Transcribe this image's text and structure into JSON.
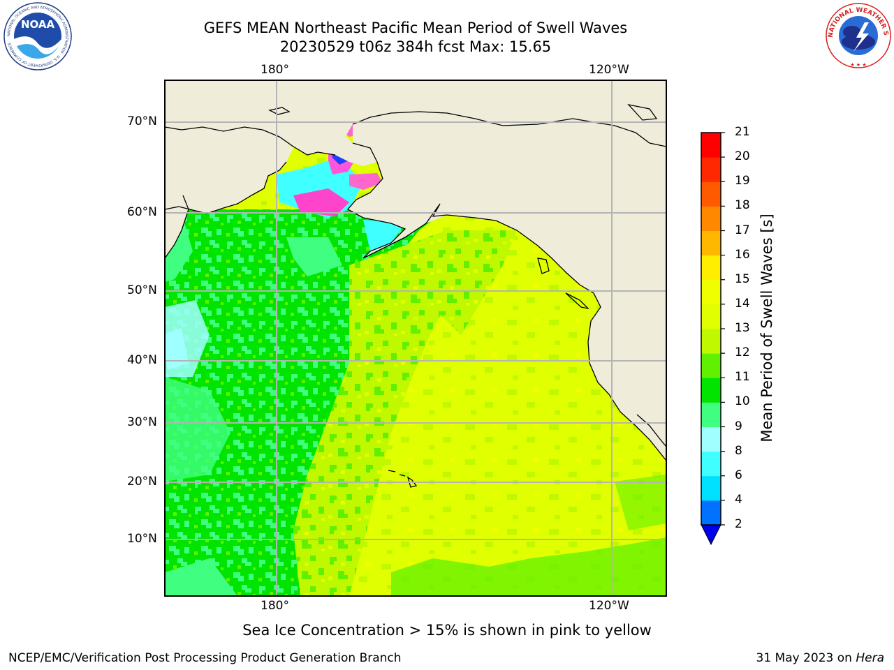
{
  "header": {
    "title_line1": "GEFS MEAN Northeast Pacific Mean Period of Swell Waves",
    "title_line2": "20230529 t06z 384h fcst   Max: 15.65"
  },
  "logos": {
    "noaa_text": "NOAA",
    "noaa_ring_text": "NATIONAL OCEANIC AND ATMOSPHERIC ADMINISTRATION · U.S. DEPARTMENT OF COMMERCE",
    "nws_ring_text": "NATIONAL WEATHER SERVICE"
  },
  "map": {
    "lon_labels": [
      "180°",
      "120°W"
    ],
    "lat_labels": [
      "70°N",
      "60°N",
      "50°N",
      "40°N",
      "30°N",
      "20°N",
      "10°N"
    ],
    "colors": {
      "land": "#efecda",
      "gridline": "#b4b4b4",
      "coastline": "#000000"
    }
  },
  "colorbar": {
    "title": "Mean Period of Swell Waves [s]",
    "ticks": [
      "21",
      "20",
      "19",
      "18",
      "17",
      "16",
      "15",
      "14",
      "13",
      "12",
      "11",
      "10",
      "9",
      "8",
      "6",
      "4",
      "2"
    ],
    "colors_bottom_to_top": [
      "#0072ff",
      "#00e0ff",
      "#40ffff",
      "#a0ffff",
      "#40ff80",
      "#00e400",
      "#60f000",
      "#c0f800",
      "#e0ff00",
      "#f0ff00",
      "#ffee00",
      "#ffb800",
      "#ff8800",
      "#ff5a00",
      "#ff2800",
      "#ff0000"
    ],
    "extend_color": "#0000ee"
  },
  "footer": {
    "note": "Sea Ice Concentration > 15% is shown in pink to yellow",
    "left": "NCEP/EMC/Verification Post Processing Product Generation Branch",
    "right_date": "31 May 2023 on ",
    "right_machine": "Hera"
  }
}
